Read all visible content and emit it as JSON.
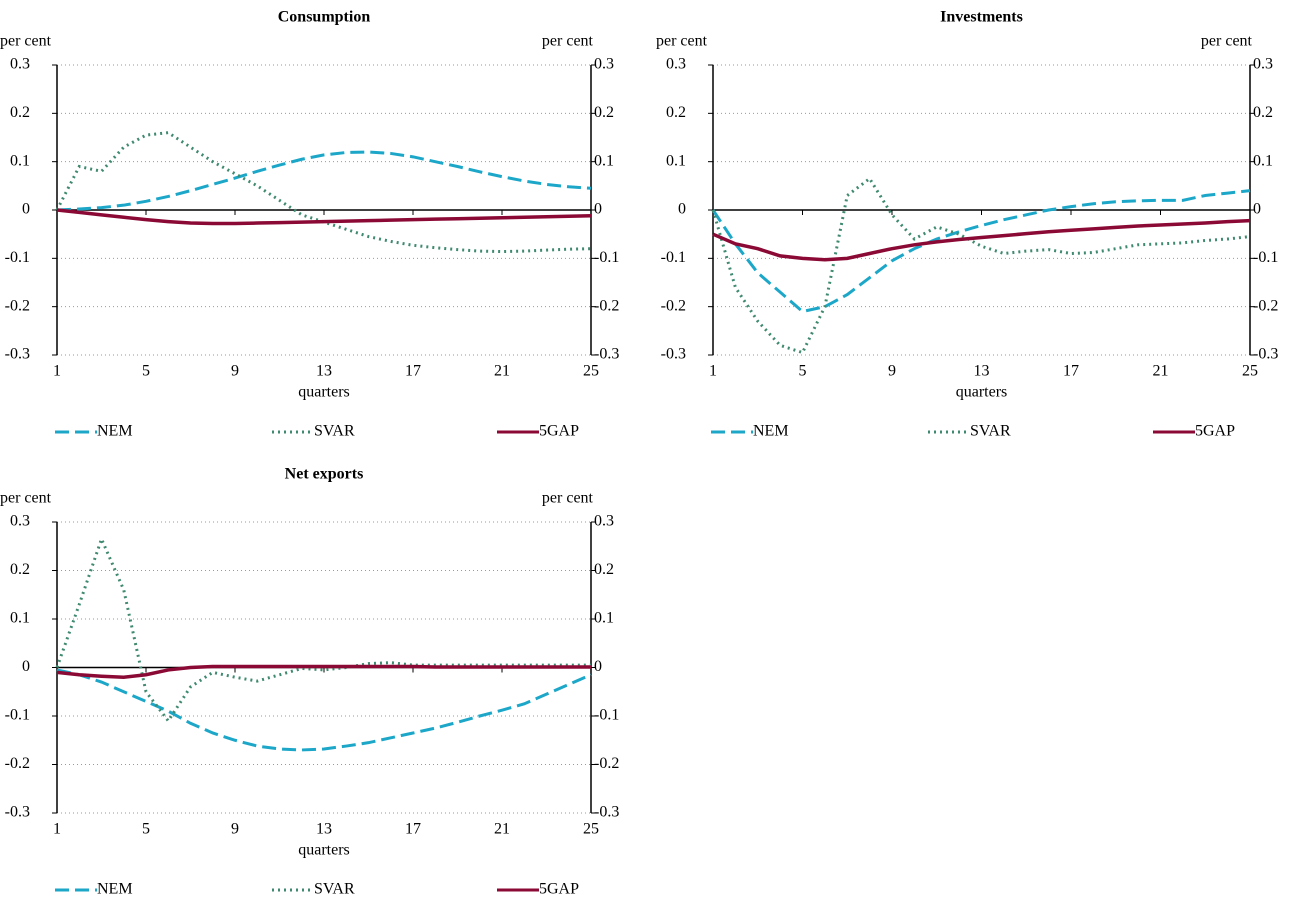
{
  "chart_data": [
    {
      "type": "line",
      "title": "Consumption",
      "y_label": "per cent",
      "y2_label": "per cent",
      "x_label": "quarters",
      "x": [
        1,
        2,
        3,
        4,
        5,
        6,
        7,
        8,
        9,
        10,
        11,
        12,
        13,
        14,
        15,
        16,
        17,
        18,
        19,
        20,
        21,
        22,
        23,
        24,
        25
      ],
      "xlim": [
        1,
        25
      ],
      "xticks": [
        1,
        5,
        9,
        13,
        17,
        21,
        25
      ],
      "ylim": [
        -0.3,
        0.3
      ],
      "yticks": [
        -0.3,
        -0.2,
        -0.1,
        0,
        0.1,
        0.2,
        0.3
      ],
      "y2lim": [
        -0.3,
        0.3
      ],
      "y2ticks": [
        -0.3,
        -0.2,
        -0.1,
        0,
        0.1,
        0.2,
        0.3
      ],
      "grid": true,
      "series": [
        {
          "name": "NEM",
          "color": "#1ca7c9",
          "style": "dashed",
          "values": [
            0,
            0.002,
            0.005,
            0.01,
            0.018,
            0.028,
            0.04,
            0.053,
            0.066,
            0.08,
            0.093,
            0.105,
            0.114,
            0.119,
            0.12,
            0.117,
            0.11,
            0.1,
            0.09,
            0.079,
            0.069,
            0.06,
            0.053,
            0.048,
            0.045
          ]
        },
        {
          "name": "SVAR",
          "color": "#3f8a6e",
          "style": "dotted",
          "values": [
            0,
            0.09,
            0.08,
            0.13,
            0.155,
            0.16,
            0.13,
            0.1,
            0.075,
            0.05,
            0.02,
            -0.01,
            -0.025,
            -0.04,
            -0.055,
            -0.065,
            -0.073,
            -0.078,
            -0.082,
            -0.085,
            -0.086,
            -0.085,
            -0.083,
            -0.081,
            -0.08
          ]
        },
        {
          "name": "5GAP",
          "color": "#8b0a35",
          "style": "solid",
          "values": [
            0,
            -0.005,
            -0.01,
            -0.015,
            -0.02,
            -0.024,
            -0.027,
            -0.028,
            -0.028,
            -0.027,
            -0.026,
            -0.025,
            -0.024,
            -0.023,
            -0.022,
            -0.021,
            -0.02,
            -0.019,
            -0.018,
            -0.017,
            -0.016,
            -0.015,
            -0.014,
            -0.013,
            -0.012
          ]
        }
      ]
    },
    {
      "type": "line",
      "title": "Investments",
      "y_label": "per cent",
      "y2_label": "per cent",
      "x_label": "quarters",
      "x": [
        1,
        2,
        3,
        4,
        5,
        6,
        7,
        8,
        9,
        10,
        11,
        12,
        13,
        14,
        15,
        16,
        17,
        18,
        19,
        20,
        21,
        22,
        23,
        24,
        25
      ],
      "xlim": [
        1,
        25
      ],
      "xticks": [
        1,
        5,
        9,
        13,
        17,
        21,
        25
      ],
      "ylim": [
        -0.3,
        0.3
      ],
      "yticks": [
        -0.3,
        -0.2,
        -0.1,
        0,
        0.1,
        0.2,
        0.3
      ],
      "y2lim": [
        -0.3,
        0.3
      ],
      "y2ticks": [
        -0.3,
        -0.2,
        -0.1,
        0,
        0.1,
        0.2,
        0.3
      ],
      "grid": true,
      "series": [
        {
          "name": "NEM",
          "color": "#1ca7c9",
          "style": "dashed",
          "values": [
            0,
            -0.07,
            -0.13,
            -0.17,
            -0.21,
            -0.2,
            -0.175,
            -0.14,
            -0.105,
            -0.08,
            -0.06,
            -0.045,
            -0.032,
            -0.02,
            -0.01,
            0,
            0.007,
            0.013,
            0.017,
            0.019,
            0.02,
            0.02,
            0.03,
            0.035,
            0.04
          ]
        },
        {
          "name": "SVAR",
          "color": "#3f8a6e",
          "style": "dotted",
          "values": [
            0,
            -0.16,
            -0.23,
            -0.28,
            -0.295,
            -0.2,
            0.03,
            0.065,
            -0.01,
            -0.06,
            -0.035,
            -0.05,
            -0.075,
            -0.09,
            -0.085,
            -0.082,
            -0.09,
            -0.088,
            -0.08,
            -0.072,
            -0.07,
            -0.068,
            -0.063,
            -0.06,
            -0.055
          ]
        },
        {
          "name": "5GAP",
          "color": "#8b0a35",
          "style": "solid",
          "values": [
            -0.05,
            -0.07,
            -0.08,
            -0.095,
            -0.1,
            -0.103,
            -0.1,
            -0.09,
            -0.08,
            -0.072,
            -0.066,
            -0.061,
            -0.057,
            -0.053,
            -0.049,
            -0.045,
            -0.042,
            -0.039,
            -0.036,
            -0.033,
            -0.031,
            -0.029,
            -0.027,
            -0.024,
            -0.022
          ]
        }
      ]
    },
    {
      "type": "line",
      "title": "Net exports",
      "y_label": "per cent",
      "y2_label": "per cent",
      "x_label": "quarters",
      "x": [
        1,
        2,
        3,
        4,
        5,
        6,
        7,
        8,
        9,
        10,
        11,
        12,
        13,
        14,
        15,
        16,
        17,
        18,
        19,
        20,
        21,
        22,
        23,
        24,
        25
      ],
      "xlim": [
        1,
        25
      ],
      "xticks": [
        1,
        5,
        9,
        13,
        17,
        21,
        25
      ],
      "ylim": [
        -0.3,
        0.3
      ],
      "yticks": [
        -0.3,
        -0.2,
        -0.1,
        0,
        0.1,
        0.2,
        0.3
      ],
      "y2lim": [
        -0.3,
        0.3
      ],
      "y2ticks": [
        -0.3,
        -0.2,
        -0.1,
        0,
        0.1,
        0.2,
        0.3
      ],
      "grid": true,
      "series": [
        {
          "name": "NEM",
          "color": "#1ca7c9",
          "style": "dashed",
          "values": [
            -0.005,
            -0.015,
            -0.03,
            -0.05,
            -0.07,
            -0.09,
            -0.115,
            -0.135,
            -0.15,
            -0.162,
            -0.168,
            -0.17,
            -0.168,
            -0.162,
            -0.155,
            -0.145,
            -0.135,
            -0.125,
            -0.113,
            -0.1,
            -0.088,
            -0.075,
            -0.055,
            -0.035,
            -0.015
          ]
        },
        {
          "name": "SVAR",
          "color": "#3f8a6e",
          "style": "dotted",
          "values": [
            0,
            0.13,
            0.265,
            0.16,
            -0.05,
            -0.11,
            -0.04,
            -0.01,
            -0.02,
            -0.028,
            -0.015,
            -0.002,
            -0.005,
            0,
            0.008,
            0.01,
            0.005,
            0.005,
            0.005,
            0.005,
            0.005,
            0.005,
            0.005,
            0.005,
            0.005
          ]
        },
        {
          "name": "5GAP",
          "color": "#8b0a35",
          "style": "solid",
          "values": [
            -0.01,
            -0.015,
            -0.018,
            -0.02,
            -0.015,
            -0.005,
            0,
            0.002,
            0.002,
            0.002,
            0.002,
            0.002,
            0.002,
            0.002,
            0.002,
            0.002,
            0.002,
            0.001,
            0.001,
            0.001,
            0.001,
            0.001,
            0.001,
            0.001,
            0.001
          ]
        }
      ]
    }
  ]
}
